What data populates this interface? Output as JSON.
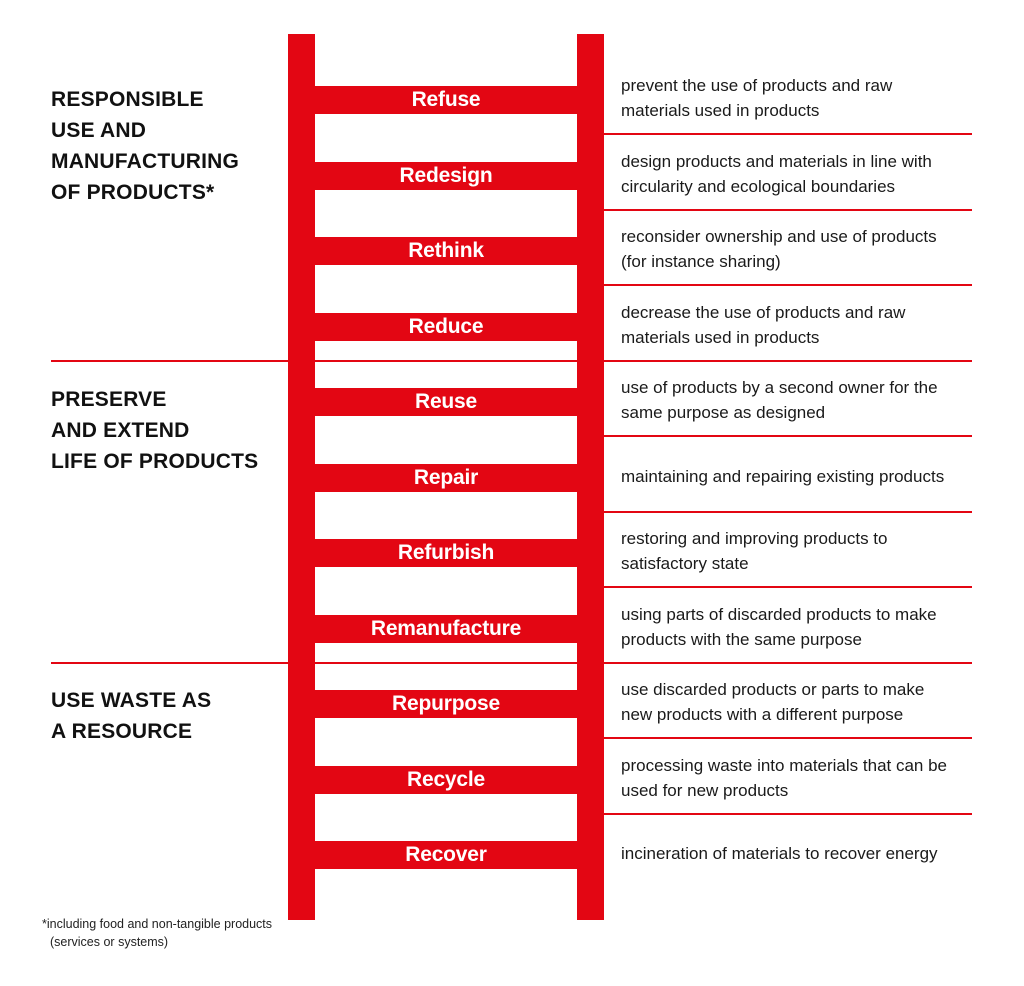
{
  "colors": {
    "accent": "#e30613",
    "text": "#111111",
    "background": "#ffffff"
  },
  "groups": [
    {
      "lines": [
        "RESPONSIBLE",
        "USE AND",
        "MANUFACTURING",
        "OF PRODUCTS*"
      ]
    },
    {
      "lines": [
        "PRESERVE",
        "AND EXTEND",
        "LIFE OF PRODUCTS"
      ]
    },
    {
      "lines": [
        "USE WASTE AS",
        "A RESOURCE"
      ]
    }
  ],
  "steps": [
    {
      "label": "Refuse",
      "description": [
        "prevent the use of products and raw",
        "materials used in products"
      ]
    },
    {
      "label": "Redesign",
      "description": [
        "design products and materials in line with",
        "circularity and ecological boundaries"
      ]
    },
    {
      "label": "Rethink",
      "description": [
        "reconsider ownership and use of products",
        "(for instance sharing)"
      ]
    },
    {
      "label": "Reduce",
      "description": [
        "decrease the use of products and raw",
        "materials used in products"
      ]
    },
    {
      "label": "Reuse",
      "description": [
        "use of products by a second owner for the",
        "same purpose as designed"
      ]
    },
    {
      "label": "Repair",
      "description": [
        "maintaining and repairing existing products"
      ]
    },
    {
      "label": "Refurbish",
      "description": [
        "restoring and improving products to",
        "satisfactory state"
      ]
    },
    {
      "label": "Remanufacture",
      "description": [
        "using parts of discarded products to make",
        "products with the same purpose"
      ]
    },
    {
      "label": "Repurpose",
      "description": [
        "use discarded products or parts to make",
        "new products with a different purpose"
      ]
    },
    {
      "label": "Recycle",
      "description": [
        "processing waste into materials that can be",
        "used for new products"
      ]
    },
    {
      "label": "Recover",
      "description": [
        "incineration of materials to recover energy"
      ]
    }
  ],
  "footnote": [
    "*including food and non-tangible products",
    "(services or systems)"
  ]
}
